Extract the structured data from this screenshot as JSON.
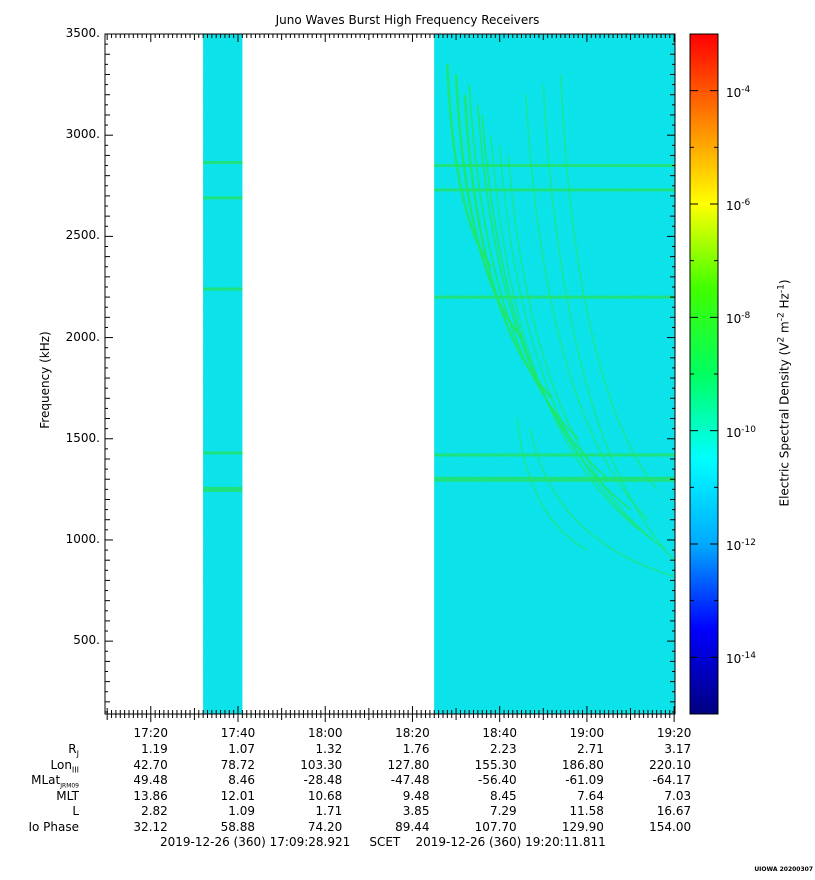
{
  "chart_data": {
    "type": "heatmap",
    "title": "Juno Waves Burst High Frequency Receivers",
    "ylabel": "Frequency (kHz)",
    "x_tick_labels": [
      "17:20",
      "17:40",
      "18:00",
      "18:20",
      "18:40",
      "19:00",
      "19:20"
    ],
    "y_tick_labels": [
      "500.",
      "1000.",
      "1500.",
      "2000.",
      "2500.",
      "3000.",
      "3500."
    ],
    "y_ticks": [
      500,
      1000,
      1500,
      2000,
      2500,
      3000,
      3500
    ],
    "ylim": [
      140,
      3500
    ],
    "x_range_minutes": [
      1029.5,
      1160.2
    ],
    "x_ticks_minutes": [
      1040,
      1060,
      1080,
      1100,
      1120,
      1140,
      1160
    ],
    "data_intervals_minutes": [
      [
        1052,
        1061
      ],
      [
        1105,
        1160.2
      ]
    ],
    "background_level": "1e-12",
    "emission_lines": [
      {
        "freq_khz": 2865,
        "interval": 0
      },
      {
        "freq_khz": 2690,
        "interval": 0
      },
      {
        "freq_khz": 2240,
        "interval": 0
      },
      {
        "freq_khz": 1430,
        "interval": 0
      },
      {
        "freq_khz": 1250,
        "interval": 0
      },
      {
        "freq_khz": 2850,
        "interval": 1
      },
      {
        "freq_khz": 2730,
        "interval": 1
      },
      {
        "freq_khz": 2200,
        "interval": 1
      },
      {
        "freq_khz": 1420,
        "interval": 1
      },
      {
        "freq_khz": 1300,
        "interval": 1
      }
    ],
    "colorbar": {
      "label": "Electric Spectral Density (V",
      "label_sup1": "2",
      "label_mid": " m",
      "label_sup2": "-2",
      "label_mid2": " Hz",
      "label_sup3": "-1",
      "label_end": ")",
      "ticks": [
        {
          "base": "10",
          "exp": "-4",
          "value": -4
        },
        {
          "base": "10",
          "exp": "-6",
          "value": -6
        },
        {
          "base": "10",
          "exp": "-8",
          "value": -8
        },
        {
          "base": "10",
          "exp": "-10",
          "value": -10
        },
        {
          "base": "10",
          "exp": "-12",
          "value": -12
        },
        {
          "base": "10",
          "exp": "-14",
          "value": -14
        }
      ],
      "range_log10": [
        -15,
        -3
      ],
      "scale": "log",
      "colors": [
        "#000080",
        "#0000ff",
        "#00aaff",
        "#00ffff",
        "#00ff60",
        "#40ff00",
        "#ffff00",
        "#ff8000",
        "#ff0000"
      ]
    },
    "ephemeris": {
      "rows": [
        {
          "name": "R",
          "sub": "J",
          "values": [
            "1.19",
            "1.07",
            "1.32",
            "1.76",
            "2.23",
            "2.71",
            "3.17"
          ]
        },
        {
          "name": "Lon",
          "sub": "III",
          "values": [
            "42.70",
            "78.72",
            "103.30",
            "127.80",
            "155.30",
            "186.80",
            "220.10"
          ]
        },
        {
          "name": "MLat",
          "sub": "JRM09",
          "values": [
            "49.48",
            "8.46",
            "-28.48",
            "-47.48",
            "-56.40",
            "-61.09",
            "-64.17"
          ]
        },
        {
          "name": "MLT",
          "sub": "",
          "values": [
            "13.86",
            "12.01",
            "10.68",
            "9.48",
            "8.45",
            "7.64",
            "7.03"
          ]
        },
        {
          "name": "L",
          "sub": "",
          "values": [
            "2.82",
            "1.09",
            "1.71",
            "3.85",
            "7.29",
            "11.58",
            "16.67"
          ]
        },
        {
          "name": "Io Phase",
          "sub": "",
          "values": [
            "32.12",
            "58.88",
            "74.20",
            "89.44",
            "107.70",
            "129.90",
            "154.00"
          ]
        }
      ]
    },
    "time_range": "2019-12-26 (360) 17:09:28.921     SCET    2019-12-26 (360) 19:20:11.811",
    "credit": "UIOWA 20200307"
  }
}
